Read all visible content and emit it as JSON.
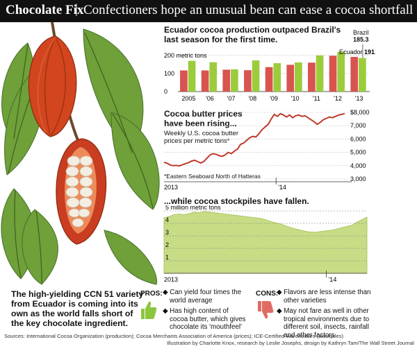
{
  "header": {
    "kicker": "Chocolate Fix",
    "separator": "|",
    "headline": "Confectioners hope an unusual bean can ease a cocoa shortfall"
  },
  "intro_note": "The high-yielding CCN 51 variety from Ecuador is coming into its own as the world falls short of the key chocolate ingredient.",
  "chart_data": [
    {
      "type": "bar",
      "title": "Ecuador cocoa production outpaced Brazil's last season for the first time.",
      "unit_label": "200 metric tons",
      "categories": [
        "2005",
        "'06",
        "'07",
        "'08",
        "'09",
        "'10",
        "'11",
        "'12",
        "'13"
      ],
      "ylim": [
        0,
        230
      ],
      "yticks": [
        0,
        100,
        200
      ],
      "ytick_labels": [
        "0",
        "100",
        "200 metric tons"
      ],
      "series": [
        {
          "name": "Ecuador",
          "color": "#d9534f",
          "values": [
            117,
            117,
            121,
            118,
            135,
            148,
            160,
            198,
            191.5
          ]
        },
        {
          "name": "Brazil",
          "color": "#9ccc3c",
          "values": [
            170,
            162,
            123,
            172,
            157,
            161,
            200,
            220,
            185.3
          ]
        }
      ],
      "annotations": [
        {
          "series": "Ecuador",
          "label": "Ecuador",
          "value": "191.5"
        },
        {
          "series": "Brazil",
          "label": "Brazil",
          "value": "185.3"
        }
      ]
    },
    {
      "type": "line",
      "title": "Cocoa butter prices have been rising...",
      "subtitle": "Weekly U.S. cocoa butter prices per metric tons*",
      "footnote": "*Eastern Seaboard North of Hatteras",
      "ylim": [
        3000,
        8000
      ],
      "yticks": [
        3000,
        4000,
        5000,
        6000,
        7000,
        8000
      ],
      "ytick_labels": [
        "3,000",
        "4,000",
        "5,000",
        "6,000",
        "7,000",
        "$8,000"
      ],
      "x_labels": [
        "2013",
        "'14"
      ],
      "color": "#c0392b",
      "values": [
        4250,
        4180,
        4050,
        4000,
        4020,
        3980,
        4070,
        4150,
        4230,
        4350,
        4400,
        4300,
        4200,
        4320,
        4550,
        4800,
        4900,
        4850,
        4750,
        4700,
        4820,
        5000,
        4900,
        5100,
        5250,
        5600,
        5700,
        5900,
        6100,
        6200,
        6150,
        6400,
        6700,
        6900,
        7100,
        7500,
        7850,
        7700,
        7900,
        7800,
        7650,
        7800,
        7600,
        7750,
        7800,
        7700,
        7750,
        7600,
        7450,
        7300,
        7100,
        7250,
        7450,
        7550,
        7650,
        7600,
        7700,
        7800,
        7850,
        7900
      ]
    },
    {
      "type": "area",
      "title": "...while cocoa stockpiles have fallen.",
      "unit_label": "5 million metric tons",
      "ylim": [
        0,
        5
      ],
      "yticks": [
        1,
        2,
        3,
        4,
        5
      ],
      "ytick_labels": [
        "1",
        "2",
        "3",
        "4",
        "5 million metric tons"
      ],
      "x_labels": [
        "2013",
        "'14"
      ],
      "color": "#c8dc86",
      "values": [
        4.45,
        4.55,
        4.7,
        4.75,
        4.7,
        4.8,
        4.9,
        4.85,
        4.95,
        4.9,
        4.85,
        4.8,
        4.75,
        4.7,
        4.65,
        4.6,
        4.55,
        4.5,
        4.45,
        4.4,
        4.3,
        4.15,
        4.05,
        3.95,
        3.8,
        3.65,
        3.55,
        3.45,
        3.35,
        3.3,
        3.3,
        3.35,
        3.4,
        3.45,
        3.55,
        3.65,
        3.75,
        3.85,
        4.1,
        4.3,
        4.5
      ]
    }
  ],
  "pros": {
    "label": "PROS:",
    "items": [
      "Can yield four times the world average",
      "Has high content of cocoa butter, which gives chocolate its 'mouthfeel'"
    ],
    "icon": "thumbs-up-icon",
    "color": "#8cc63f"
  },
  "cons": {
    "label": "CONS:",
    "items": [
      "Flavors are less intense than other varieties",
      "May not fare as well in other tropical environments due to different soil, insects, rainfall and other factors"
    ],
    "icon": "thumbs-down-icon",
    "color": "#e06b63"
  },
  "footer": {
    "sources": "Sources: International Cocoa Organization (production); Cocoa Merchants Association of America (prices); ICE-Certified Warehouses (stockpiles)",
    "credits": "Illustration by Charlotte Knox, research by Leslie Josephs, design by Kathryn Tam/The Wall Street Journal"
  }
}
